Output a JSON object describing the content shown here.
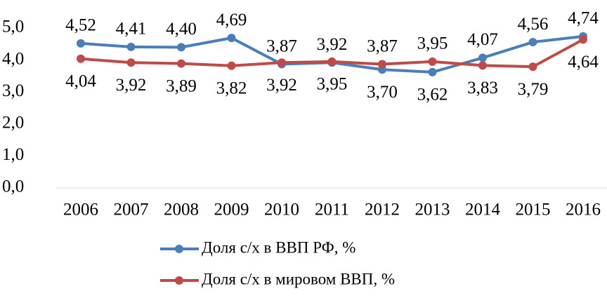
{
  "chart_data": {
    "type": "line",
    "categories": [
      "2006",
      "2007",
      "2008",
      "2009",
      "2010",
      "2011",
      "2012",
      "2013",
      "2014",
      "2015",
      "2016"
    ],
    "series": [
      {
        "name": "Доля с/х в ВВП РФ, %",
        "color": "#4a7ebb",
        "values": [
          4.52,
          4.41,
          4.4,
          4.69,
          3.87,
          3.92,
          3.7,
          3.62,
          4.07,
          4.56,
          4.74
        ],
        "value_labels": [
          "4,52",
          "4,41",
          "4,40",
          "4,69",
          "3,87",
          "3,92",
          "3,70",
          "3,62",
          "4,07",
          "4,56",
          "4,74"
        ]
      },
      {
        "name": "Доля с/х в мировом ВВП, %",
        "color": "#be4b48",
        "values": [
          4.04,
          3.92,
          3.89,
          3.82,
          3.92,
          3.95,
          3.87,
          3.95,
          3.83,
          3.79,
          4.64
        ],
        "value_labels": [
          "4,04",
          "3,92",
          "3,89",
          "3,82",
          "3,92",
          "3,95",
          "3,87",
          "3,95",
          "3,83",
          "3,79",
          "4,64"
        ]
      }
    ],
    "ylim": [
      0,
      5
    ],
    "yticks": [
      {
        "value": 0,
        "label": "0,0"
      },
      {
        "value": 1,
        "label": "1,0"
      },
      {
        "value": 2,
        "label": "2,0"
      },
      {
        "value": 3,
        "label": "3,0"
      },
      {
        "value": 4,
        "label": "4,0"
      },
      {
        "value": 5,
        "label": "5,0"
      }
    ],
    "grid": false,
    "legend": "bottom"
  }
}
